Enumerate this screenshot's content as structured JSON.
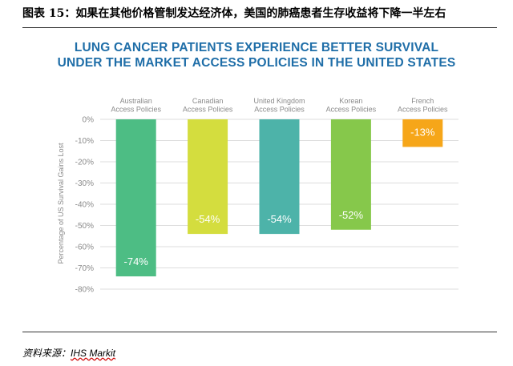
{
  "figure_caption": "图表 15：如果在其他价格管制发达经济体，美国的肺癌患者生存收益将下降一半左右",
  "source": {
    "label": "资料来源：",
    "name": "IHS Markit"
  },
  "colors": {
    "title": "#1f6ea8",
    "australian": "#4dbd84",
    "canadian": "#d4dd3e",
    "uk": "#4db3a9",
    "korean": "#86c84b",
    "french": "#f6a619",
    "axis_text": "#8a8a8a",
    "grid": "#dddddd"
  },
  "chart_data": {
    "type": "bar",
    "title": [
      "LUNG CANCER PATIENTS EXPERIENCE BETTER SURVIVAL",
      "UNDER THE MARKET ACCESS POLICIES IN THE UNITED STATES"
    ],
    "categories": [
      [
        "Australian",
        "Access Policies"
      ],
      [
        "Canadian",
        "Access Policies"
      ],
      [
        "United Kingdom",
        "Access Policies"
      ],
      [
        "Korean",
        "Access Policies"
      ],
      [
        "French",
        "Access Policies"
      ]
    ],
    "values": [
      -74,
      -54,
      -54,
      -52,
      -13
    ],
    "data_labels": [
      "-74%",
      "-54%",
      "-54%",
      "-52%",
      "-13%"
    ],
    "bar_colors": [
      "#4dbd84",
      "#d4dd3e",
      "#4db3a9",
      "#86c84b",
      "#f6a619"
    ],
    "ylabel": "Percentage of US Survival Gains Lost",
    "xlabel": "",
    "ylim": [
      -80,
      0
    ],
    "yticks": [
      0,
      -10,
      -20,
      -30,
      -40,
      -50,
      -60,
      -70,
      -80
    ],
    "ytick_labels": [
      "0%",
      "-10%",
      "-20%",
      "-30%",
      "-40%",
      "-50%",
      "-60%",
      "-70%",
      "-80%"
    ],
    "category_axis_position": "top"
  }
}
